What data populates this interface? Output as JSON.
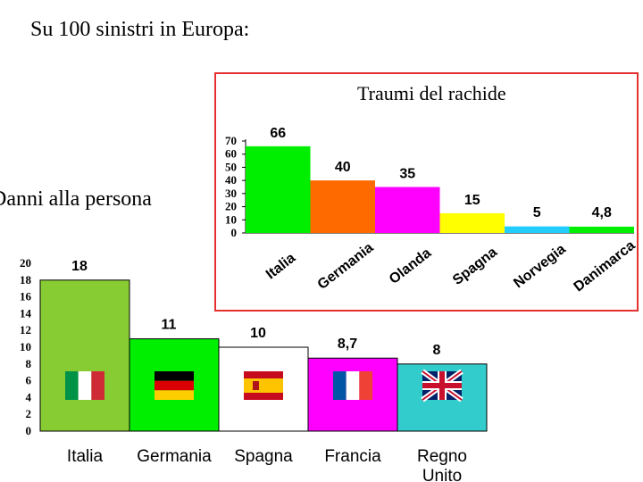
{
  "page": {
    "title": "Su 100 sinistri in Europa:"
  },
  "chart_data": [
    {
      "type": "bar",
      "title": "Traumi del rachide",
      "categories": [
        "Italia",
        "Germania",
        "Olanda",
        "Spagna",
        "Norvegia",
        "Danimarca"
      ],
      "values": [
        66,
        40,
        35,
        15,
        5,
        4.8
      ],
      "value_labels": [
        "66",
        "40",
        "35",
        "15",
        "5",
        "4,8"
      ],
      "colors": [
        "#00ee00",
        "#ff6a00",
        "#ff00ff",
        "#ffff00",
        "#22ccff",
        "#00ee00"
      ],
      "ylim": [
        0,
        70
      ],
      "yticks": [
        0,
        10,
        20,
        30,
        40,
        50,
        60,
        70
      ],
      "grid": false
    },
    {
      "type": "bar",
      "title": "Danni alla persona",
      "categories": [
        "Italia",
        "Germania",
        "Spagna",
        "Francia",
        "Regno Unito"
      ],
      "values": [
        18,
        11,
        10,
        8.7,
        8
      ],
      "value_labels": [
        "18",
        "11",
        "10",
        "8,7",
        "8"
      ],
      "colors": [
        "#88cc33",
        "#00ee00",
        "#ffffff",
        "#ff00ff",
        "#33cccc"
      ],
      "flag_icons": [
        "italy-flag-icon",
        "germany-flag-icon",
        "spain-flag-icon",
        "france-flag-icon",
        "uk-flag-icon"
      ],
      "ylim": [
        0,
        20
      ],
      "yticks": [
        0,
        2,
        4,
        6,
        8,
        10,
        12,
        14,
        16,
        18,
        20
      ],
      "grid": false
    }
  ]
}
